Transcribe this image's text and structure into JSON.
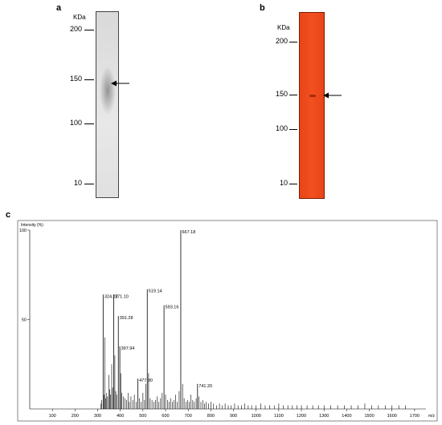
{
  "panels": {
    "a": {
      "letter": "a",
      "unit": "KDa",
      "markers": [
        "200",
        "150",
        "100",
        "10"
      ]
    },
    "b": {
      "letter": "b",
      "unit": "KDa",
      "markers": [
        "200",
        "150",
        "100",
        "10"
      ]
    },
    "c": {
      "letter": "c"
    }
  },
  "chart_data": {
    "type": "bar",
    "ylabel": "Intensity (%)",
    "xlabel": "m/z",
    "xlim": [
      0,
      1750
    ],
    "ylim": [
      0,
      100
    ],
    "xticks": [
      100,
      200,
      300,
      400,
      500,
      600,
      700,
      800,
      900,
      1000,
      1100,
      1200,
      1300,
      1400,
      1500,
      1600,
      1700
    ],
    "yticks": [
      50,
      100
    ],
    "ytick_labels": [
      "50",
      "100"
    ],
    "labeled_peaks": [
      {
        "x": 324.22,
        "y": 64,
        "label": "324.22"
      },
      {
        "x": 371.1,
        "y": 64,
        "label": "371.10"
      },
      {
        "x": 391.28,
        "y": 52,
        "label": "391.28"
      },
      {
        "x": 397.94,
        "y": 35,
        "label": "397.94"
      },
      {
        "x": 477.9,
        "y": 17,
        "label": "477.90"
      },
      {
        "x": 519.14,
        "y": 67,
        "label": "519.14"
      },
      {
        "x": 593.16,
        "y": 58,
        "label": "593.16"
      },
      {
        "x": 667.18,
        "y": 100,
        "label": "667.18"
      },
      {
        "x": 741.2,
        "y": 14,
        "label": "741.20"
      }
    ],
    "other_peaks": [
      [
        315,
        3
      ],
      [
        318,
        5
      ],
      [
        328,
        8
      ],
      [
        331,
        40
      ],
      [
        335,
        6
      ],
      [
        340,
        9
      ],
      [
        344,
        7
      ],
      [
        349,
        19
      ],
      [
        353,
        11
      ],
      [
        357,
        8
      ],
      [
        362,
        25
      ],
      [
        366,
        12
      ],
      [
        376,
        30
      ],
      [
        380,
        10
      ],
      [
        384,
        8
      ],
      [
        402,
        20
      ],
      [
        407,
        9
      ],
      [
        413,
        7
      ],
      [
        420,
        6
      ],
      [
        428,
        5
      ],
      [
        434,
        9
      ],
      [
        440,
        4
      ],
      [
        447,
        7
      ],
      [
        455,
        5
      ],
      [
        462,
        8
      ],
      [
        470,
        4
      ],
      [
        485,
        6
      ],
      [
        492,
        4
      ],
      [
        500,
        9
      ],
      [
        507,
        5
      ],
      [
        513,
        14
      ],
      [
        525,
        20
      ],
      [
        532,
        6
      ],
      [
        540,
        5
      ],
      [
        548,
        4
      ],
      [
        556,
        5
      ],
      [
        563,
        7
      ],
      [
        570,
        4
      ],
      [
        578,
        6
      ],
      [
        585,
        9
      ],
      [
        600,
        8
      ],
      [
        608,
        5
      ],
      [
        615,
        4
      ],
      [
        622,
        6
      ],
      [
        630,
        4
      ],
      [
        638,
        5
      ],
      [
        645,
        8
      ],
      [
        652,
        4
      ],
      [
        660,
        10
      ],
      [
        675,
        14
      ],
      [
        682,
        6
      ],
      [
        690,
        4
      ],
      [
        698,
        5
      ],
      [
        705,
        4
      ],
      [
        712,
        8
      ],
      [
        720,
        5
      ],
      [
        727,
        4
      ],
      [
        735,
        6
      ],
      [
        748,
        7
      ],
      [
        756,
        4
      ],
      [
        764,
        5
      ],
      [
        772,
        3
      ],
      [
        780,
        4
      ],
      [
        790,
        3
      ],
      [
        800,
        4
      ],
      [
        812,
        3
      ],
      [
        825,
        2
      ],
      [
        838,
        3
      ],
      [
        850,
        2
      ],
      [
        863,
        3
      ],
      [
        877,
        2
      ],
      [
        890,
        2
      ],
      [
        905,
        3
      ],
      [
        920,
        2
      ],
      [
        935,
        2
      ],
      [
        950,
        3
      ],
      [
        965,
        2
      ],
      [
        980,
        2
      ],
      [
        1000,
        2
      ],
      [
        1020,
        3
      ],
      [
        1040,
        2
      ],
      [
        1060,
        2
      ],
      [
        1080,
        2
      ],
      [
        1100,
        3
      ],
      [
        1120,
        2
      ],
      [
        1140,
        2
      ],
      [
        1160,
        2
      ],
      [
        1180,
        2
      ],
      [
        1200,
        2
      ],
      [
        1225,
        2
      ],
      [
        1250,
        2
      ],
      [
        1275,
        2
      ],
      [
        1300,
        2
      ],
      [
        1330,
        2
      ],
      [
        1360,
        2
      ],
      [
        1390,
        2
      ],
      [
        1420,
        2
      ],
      [
        1450,
        2
      ],
      [
        1480,
        3
      ],
      [
        1510,
        2
      ],
      [
        1540,
        2
      ],
      [
        1570,
        2
      ],
      [
        1600,
        2
      ],
      [
        1630,
        2
      ],
      [
        1660,
        2
      ]
    ]
  }
}
